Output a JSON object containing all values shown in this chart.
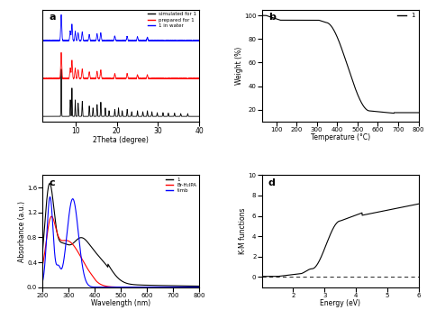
{
  "panel_a": {
    "label": "a",
    "xlabel": "2Theta (degree)",
    "xlim": [
      2,
      40
    ],
    "xticks": [
      10,
      20,
      30,
      40
    ],
    "legend": [
      "simulated for 1",
      "prepared for 1",
      "1 in water"
    ],
    "colors": [
      "black",
      "red",
      "blue"
    ]
  },
  "panel_b": {
    "label": "b",
    "xlabel": "Temperature (°C)",
    "ylabel": "Weight (%)",
    "xlim": [
      30,
      800
    ],
    "ylim": [
      10,
      105
    ],
    "xticks": [
      100,
      200,
      300,
      400,
      500,
      600,
      700,
      800
    ],
    "yticks": [
      20,
      40,
      60,
      80,
      100
    ],
    "legend": [
      "1"
    ],
    "colors": [
      "black"
    ]
  },
  "panel_c": {
    "label": "c",
    "xlabel": "Wavelength (nm)",
    "ylabel": "Absorbance (a.u.)",
    "xlim": [
      200,
      800
    ],
    "ylim": [
      0,
      1.8
    ],
    "xticks": [
      200,
      300,
      400,
      500,
      600,
      700,
      800
    ],
    "yticks": [
      0.0,
      0.4,
      0.8,
      1.2,
      1.6
    ],
    "legend": [
      "1",
      "Br-H₂IPA",
      "timb"
    ],
    "colors": [
      "black",
      "red",
      "blue"
    ]
  },
  "panel_d": {
    "label": "d",
    "xlabel": "Energy (eV)",
    "ylabel": "K-M functions",
    "xlim": [
      1,
      6
    ],
    "ylim": [
      -1,
      10
    ],
    "xticks": [
      2,
      3,
      4,
      5,
      6
    ],
    "yticks": [
      0,
      2,
      4,
      6,
      8,
      10
    ],
    "colors": [
      "black"
    ]
  },
  "bg_color": "#ffffff"
}
